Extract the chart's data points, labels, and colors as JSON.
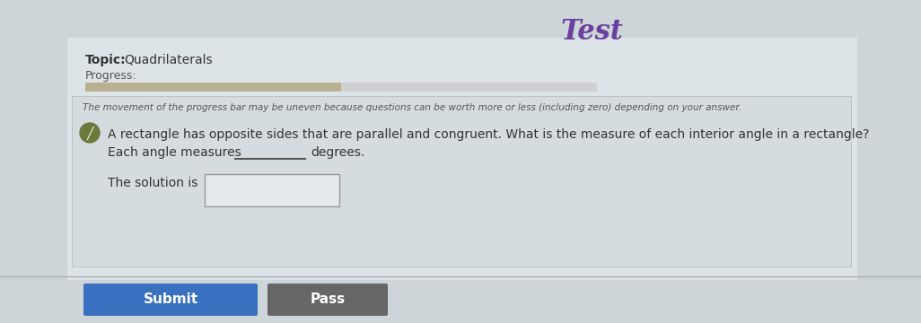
{
  "title": "Test",
  "title_color": "#6b3fa0",
  "title_fontsize": 22,
  "topic_label": "Topic:",
  "topic_value": "Quadrilaterals",
  "progress_label": "Progress:",
  "progress_note": "The movement of the progress bar may be uneven because questions can be worth more or less (including zero) depending on your answer.",
  "progress_bar_color": "#d0d0d0",
  "progress_bar_fill": "#b8b090",
  "progress_bar_fill_pct": 0.5,
  "question_text": "A rectangle has opposite sides that are parallel and congruent. What is the measure of each interior angle in a rectangle?",
  "answer_line_text1": "Each angle measures",
  "answer_line_text2": "degrees.",
  "solution_label": "The solution is",
  "submit_btn_text": "Submit",
  "submit_btn_color": "#3a70c0",
  "pass_btn_text": "Pass",
  "pass_btn_color": "#666666",
  "bg_color": "#cdd5d8",
  "panel_color": "#dce4e8",
  "inner_panel_color": "#d4dce0",
  "pencil_circle_color": "#6b7a3a",
  "underline_color": "#555555",
  "input_box_color": "#e4eaed",
  "input_box_border": "#999999",
  "text_color": "#333333",
  "small_text_color": "#555555"
}
